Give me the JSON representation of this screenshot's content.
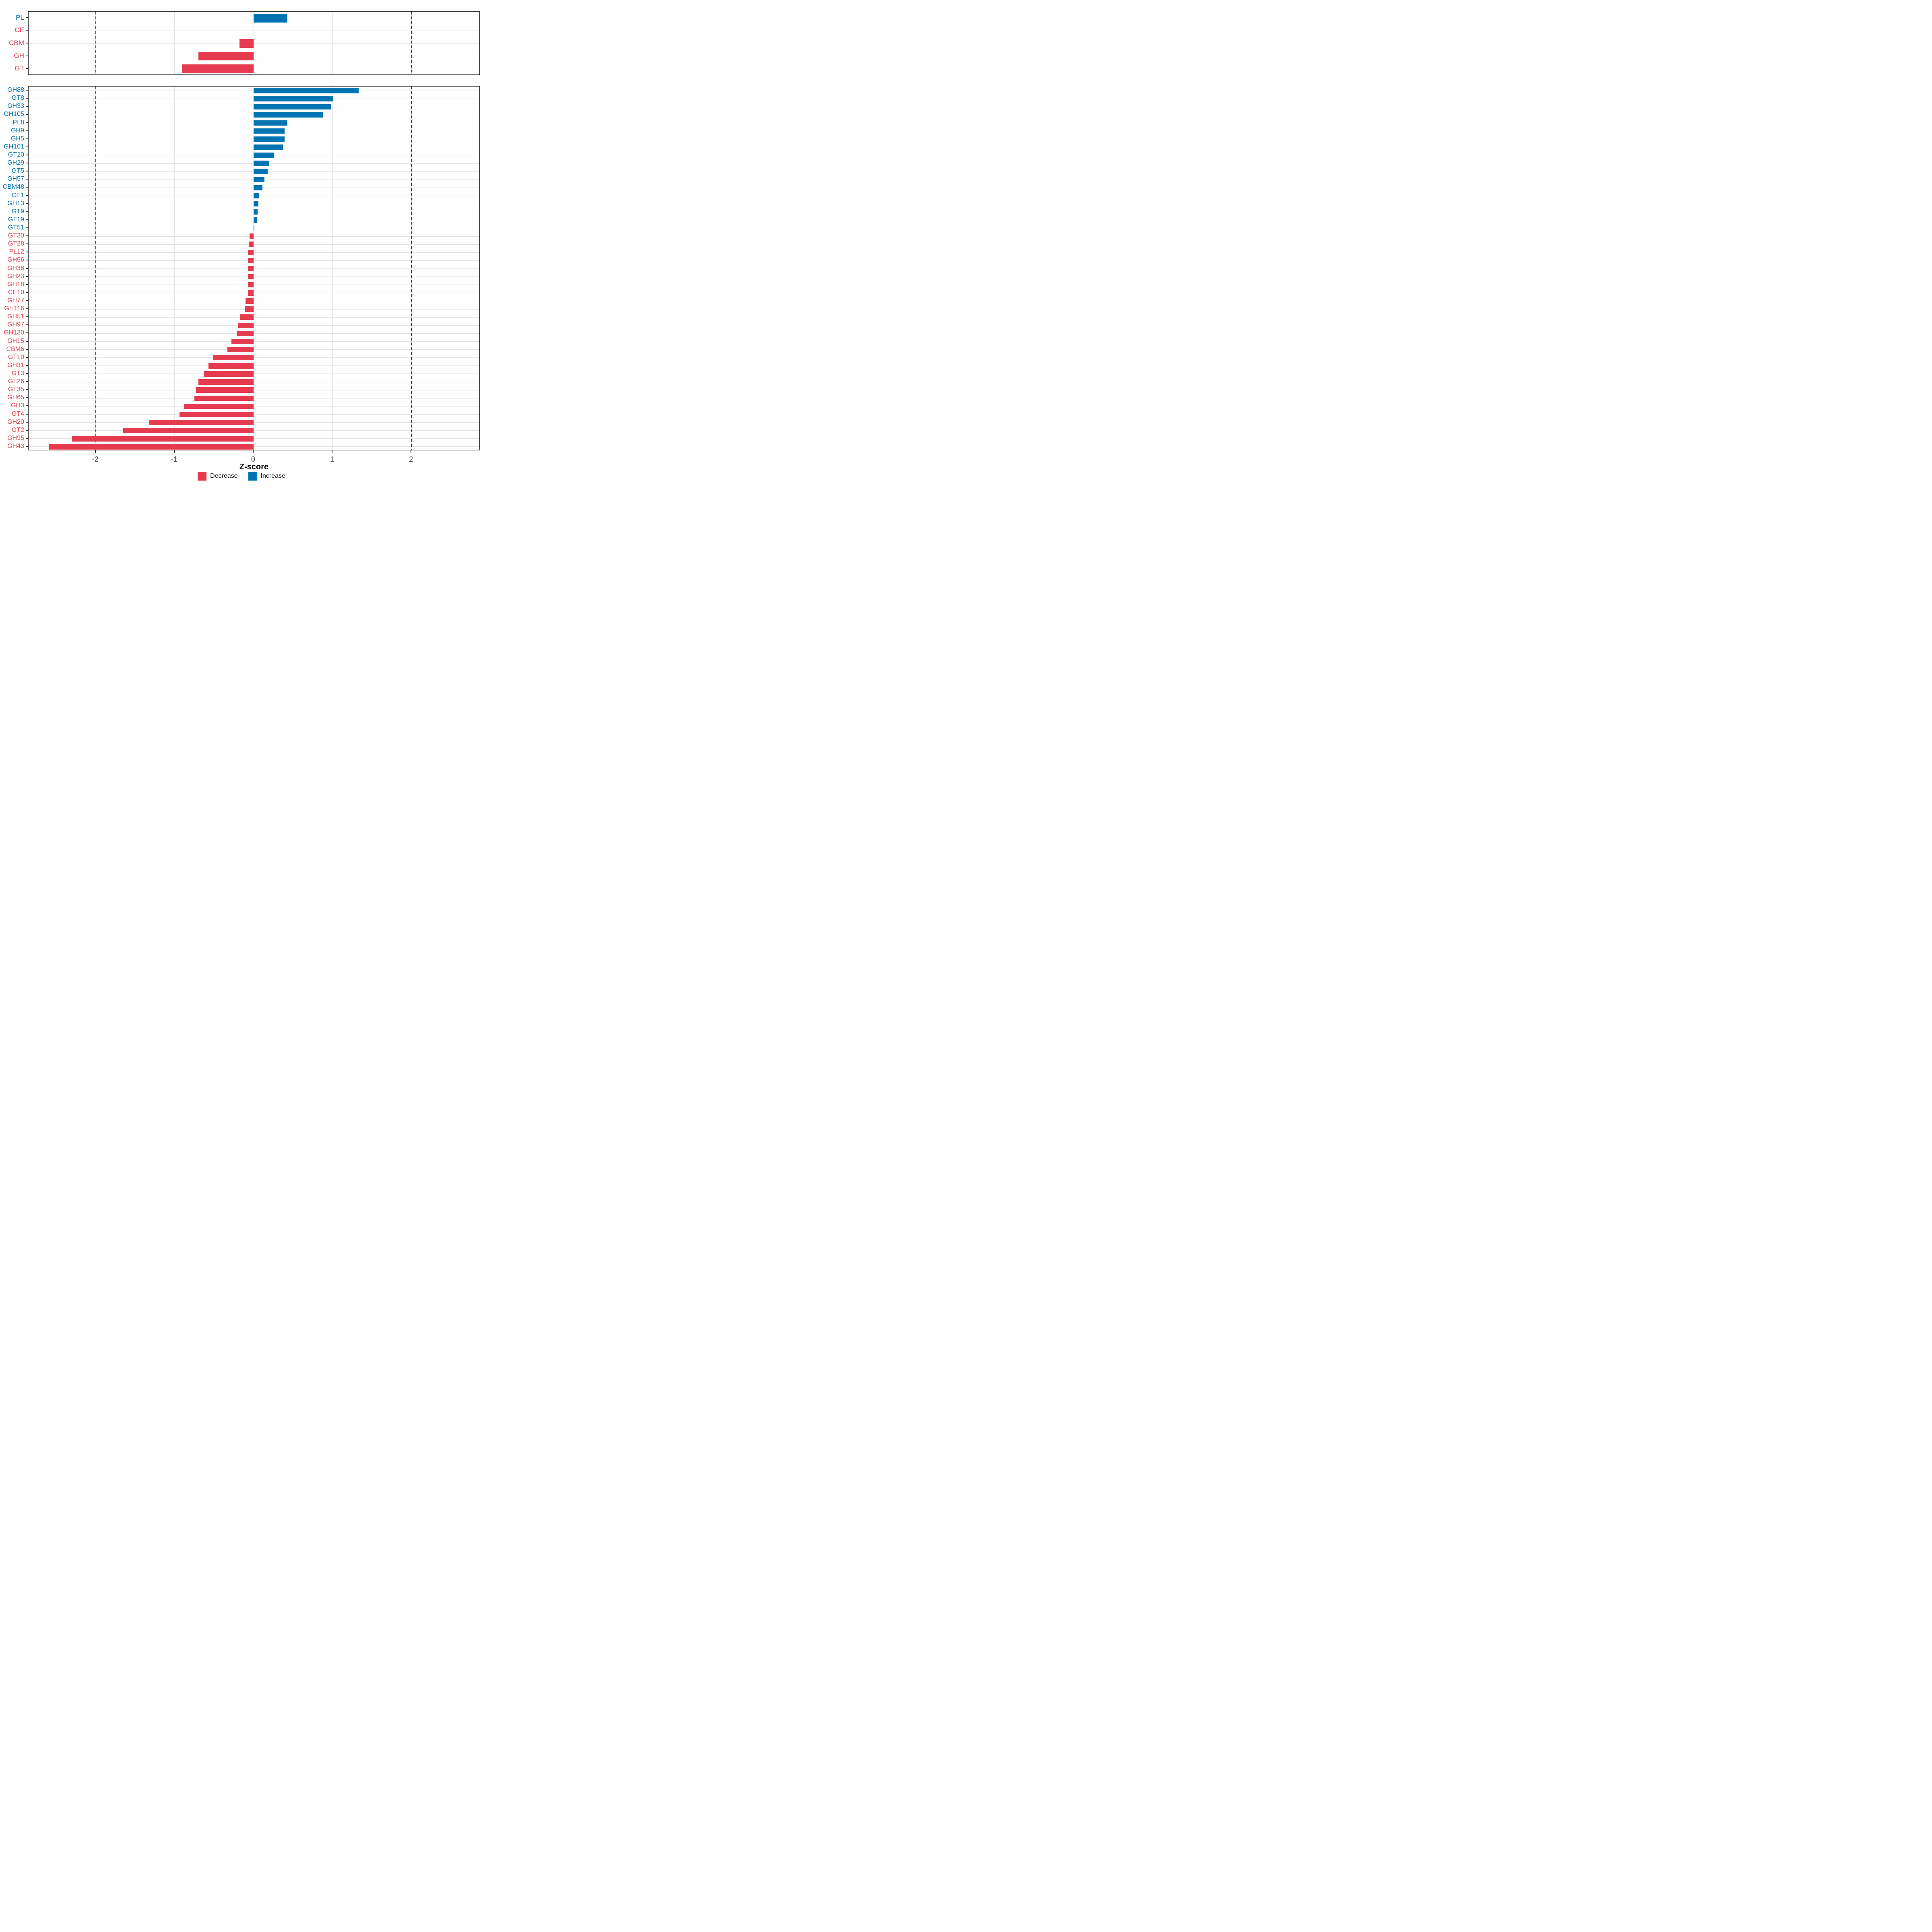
{
  "axis": {
    "xlabel": "Z-score"
  },
  "colors": {
    "decrease": "#e63b4e",
    "increase": "#0074b3",
    "grid": "#e2e2e2",
    "dash": "#3f3f3f",
    "axis_text": "#4d4d4d",
    "panel_border": "#2d2d2d"
  },
  "legend": {
    "items": [
      {
        "label": "Decrease",
        "direction": "decrease"
      },
      {
        "label": "Increase",
        "direction": "increase"
      }
    ],
    "position": "bottom-center"
  },
  "chart_data": [
    {
      "type": "bar",
      "orientation": "horizontal",
      "panel": "class-overview",
      "title": "",
      "xlabel": "Z-score",
      "xlim": [
        -2.85,
        2.87
      ],
      "xticks": [
        -2,
        -1,
        0,
        1,
        2
      ],
      "dashed_vlines": [
        -2,
        2
      ],
      "grid": true,
      "show_x_axis": false,
      "categories": [
        "PL",
        "CE",
        "CBM",
        "GH",
        "GT"
      ],
      "values": [
        0.43,
        0,
        -0.18,
        -0.7,
        -0.91
      ],
      "directions": [
        "increase",
        "decrease",
        "decrease",
        "decrease",
        "decrease"
      ]
    },
    {
      "type": "bar",
      "orientation": "horizontal",
      "panel": "family-detail",
      "title": "",
      "xlabel": "Z-score",
      "xlim": [
        -2.85,
        2.87
      ],
      "xticks": [
        -2,
        -1,
        0,
        1,
        2
      ],
      "dashed_vlines": [
        -2,
        2
      ],
      "grid": true,
      "show_x_axis": true,
      "categories": [
        "GH88",
        "GT8",
        "GH33",
        "GH105",
        "PL8",
        "GH9",
        "GH5",
        "GH101",
        "GT20",
        "GH29",
        "GT5",
        "GH57",
        "CBM48",
        "CE1",
        "GH13",
        "GT9",
        "GT19",
        "GT51",
        "GT30",
        "GT28",
        "PL12",
        "GH66",
        "GH38",
        "GH23",
        "GH18",
        "CE10",
        "GH77",
        "GH116",
        "GH51",
        "GH97",
        "GH130",
        "GH15",
        "CBM6",
        "GT10",
        "GH31",
        "GT3",
        "GT26",
        "GT35",
        "GH65",
        "GH3",
        "GT4",
        "GH20",
        "GT2",
        "GH95",
        "GH43"
      ],
      "values": [
        1.33,
        1.01,
        0.98,
        0.88,
        0.43,
        0.39,
        0.39,
        0.37,
        0.26,
        0.2,
        0.18,
        0.14,
        0.11,
        0.07,
        0.06,
        0.05,
        0.04,
        0.01,
        -0.05,
        -0.06,
        -0.07,
        -0.07,
        -0.07,
        -0.07,
        -0.07,
        -0.07,
        -0.1,
        -0.11,
        -0.17,
        -0.2,
        -0.21,
        -0.28,
        -0.33,
        -0.51,
        -0.57,
        -0.63,
        -0.7,
        -0.73,
        -0.75,
        -0.88,
        -0.94,
        -1.32,
        -1.65,
        -2.3,
        -2.59
      ],
      "directions": [
        "increase",
        "increase",
        "increase",
        "increase",
        "increase",
        "increase",
        "increase",
        "increase",
        "increase",
        "increase",
        "increase",
        "increase",
        "increase",
        "increase",
        "increase",
        "increase",
        "increase",
        "increase",
        "decrease",
        "decrease",
        "decrease",
        "decrease",
        "decrease",
        "decrease",
        "decrease",
        "decrease",
        "decrease",
        "decrease",
        "decrease",
        "decrease",
        "decrease",
        "decrease",
        "decrease",
        "decrease",
        "decrease",
        "decrease",
        "decrease",
        "decrease",
        "decrease",
        "decrease",
        "decrease",
        "decrease",
        "decrease",
        "decrease",
        "decrease"
      ]
    }
  ]
}
